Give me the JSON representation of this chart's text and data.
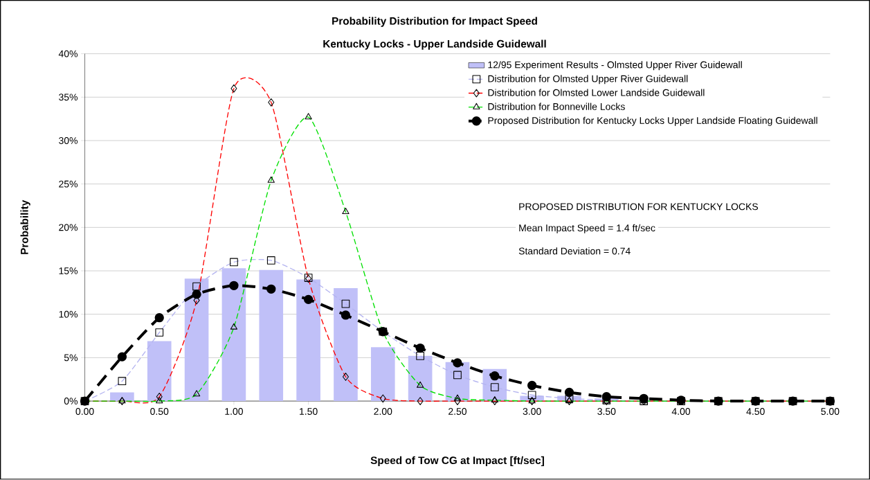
{
  "chart_data": {
    "type": "line",
    "title": "Probability Distribution for Impact Speed",
    "subtitle": "Kentucky Locks - Upper Landside Guidewall",
    "xlabel": "Speed of Tow CG at Impact [ft/sec]",
    "ylabel": "Probability",
    "x": [
      0,
      0.25,
      0.5,
      0.75,
      1,
      1.25,
      1.5,
      1.75,
      2,
      2.25,
      2.5,
      2.75,
      3,
      3.25,
      3.5,
      3.75,
      4,
      4.25,
      4.5,
      4.75,
      5
    ],
    "series": [
      {
        "name": "12/95 Experiment Results - Olmsted Upper River Guidewall",
        "type": "bar",
        "color": "#c0c0f8",
        "values": [
          0,
          1.0,
          6.9,
          14.1,
          15.3,
          15.1,
          14.0,
          13.0,
          6.2,
          5.2,
          4.5,
          3.7,
          0.6,
          0.6,
          0.3,
          0,
          0,
          0,
          0,
          0,
          0
        ]
      },
      {
        "name": "Distribution for Olmsted Upper River Guidewall",
        "type": "line",
        "color": "#b4b4f0",
        "marker": "square",
        "line_style": "dashed",
        "values": [
          0,
          2.3,
          7.9,
          13.2,
          16.0,
          16.2,
          14.2,
          11.2,
          8.0,
          5.2,
          3.0,
          1.6,
          0.7,
          0.3,
          0.1,
          0,
          0,
          0,
          0,
          0,
          0
        ]
      },
      {
        "name": "Distribution for Olmsted Lower Landside Guidewall",
        "type": "line",
        "color": "#ff0000",
        "marker": "diamond",
        "line_style": "dashed",
        "values": [
          0,
          0,
          0.5,
          11.6,
          36.0,
          34.4,
          14.1,
          2.8,
          0.3,
          0,
          0,
          0,
          0,
          0,
          0,
          0,
          0,
          0,
          0,
          0,
          0
        ]
      },
      {
        "name": "Distribution for Bonneville Locks",
        "type": "line",
        "color": "#00e000",
        "marker": "triangle",
        "line_style": "dashed",
        "values": [
          0,
          0,
          0,
          0.8,
          8.5,
          25.4,
          32.7,
          21.8,
          8.0,
          1.8,
          0.3,
          0.1,
          0,
          0,
          0,
          0,
          0,
          0,
          0,
          0,
          0
        ]
      },
      {
        "name": "Proposed Distribution for Kentucky Locks Upper Landside Floating Guidewall",
        "type": "line",
        "color": "#000000",
        "marker": "circle",
        "line_style": "dashed",
        "values": [
          0,
          5.1,
          9.6,
          12.3,
          13.3,
          12.9,
          11.7,
          9.9,
          8.0,
          6.1,
          4.4,
          2.9,
          1.8,
          1.0,
          0.5,
          0.3,
          0.1,
          0,
          0,
          0,
          0
        ]
      }
    ],
    "xlim": [
      0,
      5
    ],
    "ylim": [
      0,
      40
    ],
    "xticks": [
      {
        "value": 0,
        "label": "0.00"
      },
      {
        "value": 0.5,
        "label": "0.50"
      },
      {
        "value": 1,
        "label": "1.00"
      },
      {
        "value": 1.5,
        "label": "1.50"
      },
      {
        "value": 2,
        "label": "2.00"
      },
      {
        "value": 2.5,
        "label": "2.50"
      },
      {
        "value": 3,
        "label": "3.00"
      },
      {
        "value": 3.5,
        "label": "3.50"
      },
      {
        "value": 4,
        "label": "4.00"
      },
      {
        "value": 4.5,
        "label": "4.50"
      },
      {
        "value": 5,
        "label": "5.00"
      }
    ],
    "yticks": [
      {
        "value": 0,
        "label": "0%"
      },
      {
        "value": 5,
        "label": "5%"
      },
      {
        "value": 10,
        "label": "10%"
      },
      {
        "value": 15,
        "label": "15%"
      },
      {
        "value": 20,
        "label": "20%"
      },
      {
        "value": 25,
        "label": "25%"
      },
      {
        "value": 30,
        "label": "30%"
      },
      {
        "value": 35,
        "label": "35%"
      },
      {
        "value": 40,
        "label": "40%"
      }
    ],
    "grid": "y",
    "legend": "top right",
    "annotations": [
      "PROPOSED DISTRIBUTION FOR KENTUCKY LOCKS",
      "Mean Impact Speed = 1.4 ft/sec",
      "Standard Deviation = 0.74"
    ]
  }
}
